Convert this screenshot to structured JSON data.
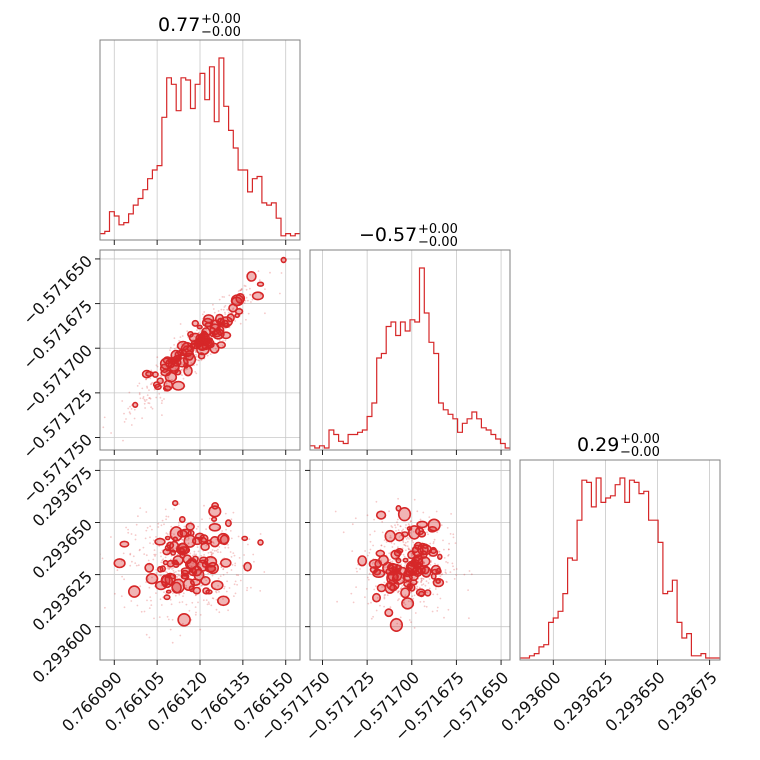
{
  "chart_data": {
    "type": "corner",
    "color": "#d62728",
    "parameters": [
      {
        "title_value": "0.77",
        "err_plus": "+0.00",
        "err_minus": "−0.00"
      },
      {
        "title_value": "−0.57",
        "err_plus": "+0.00",
        "err_minus": "−0.00"
      },
      {
        "title_value": "0.29",
        "err_plus": "+0.00",
        "err_minus": "−0.00"
      }
    ],
    "axis_ranges": [
      [
        0.766085,
        0.766155
      ],
      [
        -0.571757,
        -0.571645
      ],
      [
        0.293584,
        0.29368
      ]
    ],
    "ticks": [
      {
        "values": [
          0.76609,
          0.766105,
          0.76612,
          0.766135,
          0.76615
        ],
        "labels": [
          "0.766090",
          "0.766105",
          "0.766120",
          "0.766135",
          "0.766150"
        ]
      },
      {
        "values": [
          -0.57175,
          -0.571725,
          -0.5717,
          -0.571675,
          -0.57165
        ],
        "labels": [
          "−0.571750",
          "−0.571725",
          "−0.571700",
          "−0.571675",
          "−0.571650"
        ]
      },
      {
        "values": [
          0.2936,
          0.293625,
          0.29365,
          0.293675
        ],
        "labels": [
          "0.293600",
          "0.293625",
          "0.293650",
          "0.293675"
        ]
      }
    ],
    "histograms": [
      {
        "bin_counts": [
          2,
          3,
          12,
          10,
          6,
          7,
          11,
          15,
          18,
          22,
          27,
          31,
          33,
          55,
          73,
          70,
          58,
          73,
          72,
          59,
          70,
          75,
          63,
          78,
          53,
          82,
          60,
          49,
          41,
          31,
          31,
          21,
          27,
          28,
          16,
          15,
          16,
          9,
          1,
          2,
          1,
          2
        ]
      },
      {
        "bin_counts": [
          1,
          0,
          1,
          0,
          8,
          6,
          3,
          2,
          6,
          6,
          7,
          8,
          14,
          20,
          40,
          42,
          54,
          56,
          50,
          56,
          52,
          57,
          56,
          80,
          60,
          47,
          42,
          20,
          17,
          15,
          13,
          7,
          11,
          13,
          16,
          13,
          9,
          8,
          6,
          4,
          2,
          0
        ]
      },
      {
        "bin_counts": [
          0,
          0,
          1,
          2,
          5,
          6,
          16,
          18,
          21,
          29,
          45,
          44,
          62,
          80,
          79,
          68,
          81,
          70,
          72,
          73,
          78,
          81,
          70,
          80,
          79,
          74,
          75,
          62,
          62,
          52,
          29,
          30,
          35,
          16,
          9,
          11,
          1,
          1,
          2,
          0,
          0,
          0
        ]
      }
    ],
    "scatter_pairs": [
      {
        "x": 0,
        "y": 1,
        "correlation": "strong positive",
        "mean": [
          0.766118,
          -0.5717
        ],
        "std": [
          1.1e-05,
          1.7e-05
        ]
      },
      {
        "x": 0,
        "y": 2,
        "correlation": "none",
        "mean": [
          0.766115,
          0.29363
        ],
        "std": [
          1e-05,
          1.2e-05
        ]
      },
      {
        "x": 1,
        "y": 2,
        "correlation": "none",
        "mean": [
          -0.571702,
          0.29363
        ],
        "std": [
          1.2e-05,
          1.2e-05
        ]
      }
    ],
    "grid": true,
    "legend": "none"
  }
}
